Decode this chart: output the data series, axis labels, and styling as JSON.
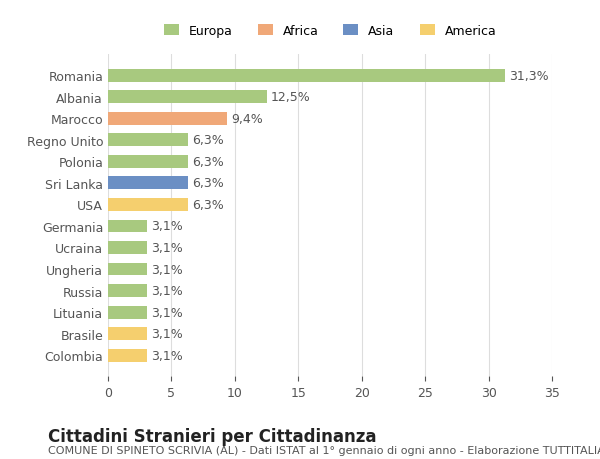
{
  "categories": [
    "Colombia",
    "Brasile",
    "Lituania",
    "Russia",
    "Ungheria",
    "Ucraina",
    "Germania",
    "USA",
    "Sri Lanka",
    "Polonia",
    "Regno Unito",
    "Marocco",
    "Albania",
    "Romania"
  ],
  "values": [
    3.1,
    3.1,
    3.1,
    3.1,
    3.1,
    3.1,
    3.1,
    6.3,
    6.3,
    6.3,
    6.3,
    9.4,
    12.5,
    31.3
  ],
  "colors": [
    "#f5cf6e",
    "#f5cf6e",
    "#a8c97f",
    "#a8c97f",
    "#a8c97f",
    "#a8c97f",
    "#a8c97f",
    "#f5cf6e",
    "#6b8fc4",
    "#a8c97f",
    "#a8c97f",
    "#f0a878",
    "#a8c97f",
    "#a8c97f"
  ],
  "labels": [
    "3,1%",
    "3,1%",
    "3,1%",
    "3,1%",
    "3,1%",
    "3,1%",
    "3,1%",
    "6,3%",
    "6,3%",
    "6,3%",
    "6,3%",
    "9,4%",
    "12,5%",
    "31,3%"
  ],
  "title": "Cittadini Stranieri per Cittadinanza",
  "subtitle": "COMUNE DI SPINETO SCRIVIA (AL) - Dati ISTAT al 1° gennaio di ogni anno - Elaborazione TUTTITALIA.IT",
  "xlim": [
    0,
    35
  ],
  "xticks": [
    0,
    5,
    10,
    15,
    20,
    25,
    30,
    35
  ],
  "legend_labels": [
    "Europa",
    "Africa",
    "Asia",
    "America"
  ],
  "legend_colors": [
    "#a8c97f",
    "#f0a878",
    "#6b8fc4",
    "#f5cf6e"
  ],
  "bar_height": 0.6,
  "background_color": "#ffffff",
  "grid_color": "#dddddd",
  "label_fontsize": 9,
  "tick_fontsize": 9,
  "title_fontsize": 12,
  "subtitle_fontsize": 8
}
